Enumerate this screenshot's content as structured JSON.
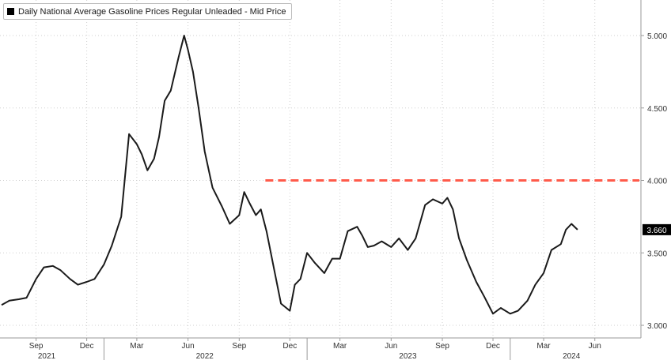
{
  "legend": {
    "label": "Daily National Average Gasoline Prices Regular Unleaded - Mid Price"
  },
  "colors": {
    "line": "#1a1a1a",
    "threshold": "#ff5a4a",
    "grid": "#cfcfcf",
    "axis_text": "#333333",
    "badge_bg": "#000000",
    "badge_text": "#ffffff"
  },
  "chart_data": {
    "type": "line",
    "title": "",
    "xlabel": "",
    "ylabel": "",
    "ylim": [
      2.95,
      5.25
    ],
    "grid": true,
    "legend_position": "top-left",
    "y_ticks": [
      "3.000",
      "3.500",
      "4.000",
      "4.500",
      "5.000"
    ],
    "x_ticks": [
      "Sep",
      "Dec",
      "Mar",
      "Jun",
      "Sep",
      "Dec",
      "Mar",
      "Jun",
      "Sep",
      "Dec",
      "Mar",
      "Jun"
    ],
    "year_labels": [
      "2021",
      "2022",
      "2023",
      "2024"
    ],
    "last_value_label": "3.660",
    "threshold": {
      "y": 4.0,
      "from": "2022-10",
      "to": "2024-08",
      "style": "dashed"
    },
    "series": [
      {
        "name": "Daily National Average Gasoline Prices Regular Unleaded - Mid Price",
        "x": [
          "2021-07",
          "2021-07-15",
          "2021-08",
          "2021-08-15",
          "2021-09",
          "2021-09-15",
          "2021-10",
          "2021-10-15",
          "2021-11",
          "2021-11-15",
          "2021-12",
          "2021-12-15",
          "2022-01",
          "2022-01-15",
          "2022-02",
          "2022-02-15",
          "2022-03",
          "2022-03-10",
          "2022-03-20",
          "2022-04",
          "2022-04-10",
          "2022-04-20",
          "2022-05",
          "2022-05-15",
          "2022-05-25",
          "2022-06",
          "2022-06-10",
          "2022-06-20",
          "2022-07",
          "2022-07-15",
          "2022-08",
          "2022-08-15",
          "2022-09",
          "2022-09-10",
          "2022-09-20",
          "2022-10",
          "2022-10-10",
          "2022-10-20",
          "2022-11",
          "2022-11-15",
          "2022-12",
          "2022-12-10",
          "2022-12-20",
          "2023-01",
          "2023-01-15",
          "2023-02",
          "2023-02-15",
          "2023-03",
          "2023-03-15",
          "2023-04",
          "2023-04-10",
          "2023-04-20",
          "2023-05",
          "2023-05-15",
          "2023-06",
          "2023-06-15",
          "2023-07",
          "2023-07-15",
          "2023-08",
          "2023-08-15",
          "2023-09",
          "2023-09-10",
          "2023-09-20",
          "2023-10",
          "2023-10-15",
          "2023-11",
          "2023-11-15",
          "2023-12",
          "2023-12-15",
          "2024-01",
          "2024-01-15",
          "2024-02",
          "2024-02-15",
          "2024-03",
          "2024-03-15",
          "2024-04",
          "2024-04-10",
          "2024-04-20",
          "2024-05"
        ],
        "values": [
          3.14,
          3.17,
          3.18,
          3.19,
          3.32,
          3.4,
          3.41,
          3.38,
          3.32,
          3.28,
          3.3,
          3.32,
          3.42,
          3.55,
          3.75,
          4.32,
          4.25,
          4.18,
          4.07,
          4.15,
          4.3,
          4.55,
          4.62,
          4.85,
          5.0,
          4.9,
          4.75,
          4.5,
          4.2,
          3.95,
          3.82,
          3.7,
          3.76,
          3.92,
          3.84,
          3.76,
          3.8,
          3.65,
          3.42,
          3.15,
          3.1,
          3.28,
          3.32,
          3.5,
          3.43,
          3.36,
          3.46,
          3.46,
          3.65,
          3.68,
          3.62,
          3.54,
          3.55,
          3.58,
          3.54,
          3.6,
          3.52,
          3.6,
          3.83,
          3.87,
          3.84,
          3.88,
          3.8,
          3.6,
          3.45,
          3.3,
          3.2,
          3.08,
          3.12,
          3.08,
          3.1,
          3.17,
          3.28,
          3.36,
          3.52,
          3.56,
          3.66,
          3.7,
          3.66
        ]
      }
    ]
  }
}
